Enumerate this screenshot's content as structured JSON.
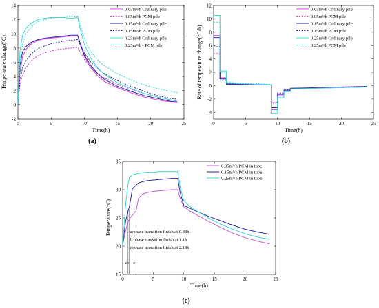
{
  "chart_data": [
    {
      "type": "line",
      "panel_label": "(a)",
      "xlabel": "Time(h)",
      "ylabel": "Temperature change(°C)",
      "xlim": [
        0,
        25
      ],
      "ylim": [
        -2,
        14
      ],
      "xticks": [
        0,
        5,
        10,
        15,
        20,
        25
      ],
      "yticks": [
        -2,
        0,
        2,
        4,
        6,
        8,
        10,
        12,
        14
      ],
      "grid": false,
      "legend_position": "top-right",
      "series": [
        {
          "name": "0.05m³/h Ordinary pile",
          "color": "#e040e0",
          "dash": false,
          "x": [
            0,
            0.3,
            0.7,
            1.2,
            2,
            3,
            4,
            5,
            6,
            7,
            8,
            9,
            9.3,
            10,
            11,
            12,
            13,
            15,
            17,
            19,
            21,
            23,
            24
          ],
          "y": [
            0,
            4.5,
            6.8,
            7.8,
            8.6,
            9.1,
            9.3,
            9.4,
            9.5,
            9.6,
            9.7,
            9.7,
            8.8,
            6.8,
            5.2,
            4.1,
            3.3,
            2.4,
            1.7,
            1.1,
            0.7,
            0.4,
            0.3
          ]
        },
        {
          "name": "0.05m³/h PCM pile",
          "color": "#e040e0",
          "dash": true,
          "x": [
            0,
            0.3,
            0.7,
            1.2,
            2,
            3,
            4,
            5,
            6,
            7,
            8,
            9,
            9.3,
            10,
            11,
            12,
            13,
            15,
            17,
            19,
            21,
            23,
            24
          ],
          "y": [
            0,
            2.8,
            4.2,
            5.2,
            6.2,
            6.9,
            7.3,
            7.6,
            7.8,
            7.9,
            8.0,
            8.1,
            7.6,
            6.4,
            5.2,
            4.4,
            3.8,
            2.9,
            2.2,
            1.6,
            1.1,
            0.7,
            0.6
          ]
        },
        {
          "name": "0.15m³/h Ordinary pile",
          "color": "#2a2aa8",
          "dash": false,
          "x": [
            0,
            0.3,
            0.7,
            1.2,
            2,
            3,
            4,
            5,
            6,
            7,
            8,
            9,
            9.3,
            10,
            11,
            12,
            13,
            15,
            17,
            19,
            21,
            23,
            24
          ],
          "y": [
            0,
            5.5,
            7.5,
            8.2,
            8.8,
            9.2,
            9.4,
            9.5,
            9.6,
            9.7,
            9.8,
            9.8,
            8.9,
            7.0,
            5.5,
            4.4,
            3.6,
            2.6,
            1.9,
            1.3,
            0.9,
            0.5,
            0.4
          ]
        },
        {
          "name": "0.15m³/h PCM pile",
          "color": "#2a2aa8",
          "dash": true,
          "x": [
            0,
            0.3,
            0.7,
            1.2,
            2,
            3,
            4,
            5,
            6,
            7,
            8,
            9,
            9.3,
            10,
            11,
            12,
            13,
            15,
            17,
            19,
            21,
            23,
            24
          ],
          "y": [
            0,
            3.5,
            5.2,
            6.2,
            7.2,
            7.9,
            8.3,
            8.6,
            8.8,
            9.0,
            9.1,
            9.2,
            8.6,
            7.3,
            6.0,
            5.1,
            4.4,
            3.4,
            2.6,
            1.9,
            1.3,
            0.9,
            0.8
          ]
        },
        {
          "name": "0.25m³/h Ordinary pile",
          "color": "#3cd8d8",
          "dash": false,
          "x": [
            0,
            0.3,
            0.7,
            1.2,
            2,
            3,
            4,
            5,
            6,
            7,
            8,
            9,
            9.3,
            10,
            11,
            12,
            13,
            15,
            17,
            19,
            21,
            23,
            24
          ],
          "y": [
            0,
            7.5,
            9.8,
            10.8,
            11.5,
            12.0,
            12.2,
            12.3,
            12.3,
            12.3,
            12.2,
            12.3,
            11.0,
            8.5,
            6.5,
            5.2,
            4.3,
            3.1,
            2.3,
            1.6,
            1.1,
            0.7,
            0.5
          ]
        },
        {
          "name": "0.25m³/h - PCM pile",
          "color": "#3cd8d8",
          "dash": true,
          "x": [
            0,
            0.3,
            0.7,
            1.2,
            2,
            3,
            4,
            5,
            6,
            7,
            8,
            9,
            9.3,
            10,
            11,
            12,
            13,
            15,
            17,
            19,
            21,
            23,
            24
          ],
          "y": [
            0,
            6.0,
            8.5,
            10.0,
            11.0,
            11.7,
            12.0,
            12.2,
            12.3,
            12.4,
            12.5,
            12.5,
            11.5,
            9.3,
            7.5,
            6.3,
            5.5,
            4.4,
            3.5,
            2.8,
            2.3,
            1.9,
            1.7
          ]
        }
      ]
    },
    {
      "type": "line",
      "panel_label": "(b)",
      "xlabel": "Time(h)",
      "ylabel": "Rate of temperature change(°C/h)",
      "xlim": [
        0,
        25
      ],
      "ylim": [
        -5,
        12
      ],
      "xticks": [
        0,
        5,
        10,
        15,
        20,
        25
      ],
      "yticks": [
        -4,
        -2,
        0,
        2,
        4,
        6,
        8,
        10,
        12
      ],
      "grid": false,
      "legend_position": "top-right",
      "series": [
        {
          "name": "0.05m³/h Ordinary pile",
          "color": "#e040e0",
          "dash": false,
          "x": [
            0,
            1,
            1,
            2,
            2,
            9,
            9,
            10,
            10,
            11,
            11,
            12,
            12,
            24
          ],
          "y": [
            7.5,
            7.5,
            1.2,
            1.2,
            0.2,
            0.1,
            -3.6,
            -3.6,
            -1.5,
            -1.5,
            -0.8,
            -0.8,
            -0.4,
            -0.2
          ]
        },
        {
          "name": "0.05m³/h PCM pile",
          "color": "#e040e0",
          "dash": true,
          "x": [
            0,
            1,
            1,
            2,
            2,
            9,
            9,
            10,
            10,
            11,
            11,
            12,
            12,
            24
          ],
          "y": [
            4.8,
            4.8,
            1.0,
            1.0,
            0.3,
            0.1,
            -2.6,
            -2.6,
            -1.2,
            -1.2,
            -0.7,
            -0.7,
            -0.4,
            -0.1
          ]
        },
        {
          "name": "0.15m³/h Ordinary pile",
          "color": "#2a2aa8",
          "dash": false,
          "x": [
            0,
            1,
            1,
            2,
            2,
            9,
            9,
            10,
            10,
            11,
            11,
            12,
            12,
            24
          ],
          "y": [
            7.2,
            7.2,
            1.0,
            1.0,
            0.2,
            0.1,
            -3.3,
            -3.3,
            -1.3,
            -1.3,
            -0.7,
            -0.7,
            -0.4,
            -0.2
          ]
        },
        {
          "name": "0.15m³/h PCM pile",
          "color": "#2a2aa8",
          "dash": true,
          "x": [
            0,
            1,
            1,
            2,
            2,
            9,
            9,
            10,
            10,
            11,
            11,
            12,
            12,
            24
          ],
          "y": [
            5.8,
            5.8,
            0.8,
            0.8,
            0.3,
            0.1,
            -2.8,
            -2.8,
            -1.1,
            -1.1,
            -0.6,
            -0.6,
            -0.4,
            -0.1
          ]
        },
        {
          "name": "0.25m³/h Ordinary pile",
          "color": "#3cd8d8",
          "dash": false,
          "x": [
            0,
            1,
            1,
            2,
            2,
            9,
            9,
            10,
            10,
            11,
            11,
            12,
            12,
            24
          ],
          "y": [
            10.5,
            10.5,
            2.2,
            2.2,
            0.4,
            0.1,
            -4.2,
            -4.2,
            -1.8,
            -1.8,
            -0.9,
            -0.9,
            -0.5,
            -0.2
          ]
        },
        {
          "name": "0.25m³/h PCM pile",
          "color": "#3cd8d8",
          "dash": true,
          "x": [
            0,
            1,
            1,
            2,
            2,
            9,
            9,
            10,
            10,
            11,
            11,
            12,
            12,
            24
          ],
          "y": [
            9.5,
            9.5,
            2.0,
            2.0,
            0.5,
            0.2,
            -3.8,
            -3.8,
            -1.6,
            -1.6,
            -0.8,
            -0.8,
            -0.5,
            -0.2
          ]
        }
      ]
    },
    {
      "type": "line",
      "panel_label": "(c)",
      "xlabel": "Time(h)",
      "ylabel": "Temperature(°C)",
      "xlim": [
        0,
        25
      ],
      "ylim": [
        15,
        35
      ],
      "xticks": [
        0,
        5,
        10,
        15,
        20,
        25
      ],
      "yticks": [
        15,
        20,
        25,
        30,
        35
      ],
      "grid": false,
      "legend_position": "top-right",
      "annotations": {
        "lines": [
          "a:phase transition finish at 0.88h",
          "b:phase transition finish at 1.1h",
          "c:phase transition finish at 2.18h"
        ],
        "markers": [
          {
            "label": "a",
            "x": 0.88
          },
          {
            "label": "b",
            "x": 1.1
          },
          {
            "label": "c",
            "x": 2.18
          }
        ]
      },
      "series": [
        {
          "name": "0.05m³/h  PCM in tube",
          "color": "#c060d8",
          "dash": false,
          "x": [
            0,
            0.5,
            0.88,
            1.2,
            1.6,
            2.18,
            2.6,
            3.2,
            4,
            5,
            6,
            7,
            8,
            9,
            9.4,
            10,
            11,
            12,
            14,
            16,
            18,
            20,
            22,
            24
          ],
          "y": [
            20.2,
            22.8,
            24.3,
            25.0,
            25.5,
            26.2,
            28.5,
            29.2,
            29.5,
            29.7,
            29.8,
            29.9,
            30.0,
            30.0,
            28.5,
            27.0,
            26.2,
            25.6,
            24.4,
            23.3,
            22.3,
            21.5,
            20.9,
            20.4
          ]
        },
        {
          "name": "0.15m³/h  PCM in tube",
          "color": "#2a2aa8",
          "dash": false,
          "x": [
            0,
            0.5,
            0.88,
            1.1,
            1.6,
            2.18,
            2.6,
            3.2,
            4,
            5,
            6,
            7,
            8,
            9,
            9.4,
            10,
            11,
            12,
            14,
            16,
            18,
            20,
            22,
            24
          ],
          "y": [
            20.2,
            24.5,
            26.2,
            27.0,
            30.2,
            30.8,
            31.2,
            31.4,
            31.6,
            31.7,
            31.8,
            31.9,
            32.0,
            32.0,
            29.5,
            27.2,
            26.7,
            26.2,
            25.3,
            24.5,
            23.7,
            23.0,
            22.5,
            22.1
          ]
        },
        {
          "name": "0.25m³/h  PCM in tube",
          "color": "#3cd8d8",
          "dash": false,
          "x": [
            0,
            0.5,
            0.88,
            1.1,
            1.6,
            2.18,
            2.6,
            3.2,
            4,
            5,
            6,
            7,
            8,
            9,
            9.4,
            10,
            11,
            12,
            14,
            16,
            18,
            20,
            22,
            24
          ],
          "y": [
            20.2,
            27.5,
            31.0,
            32.2,
            32.6,
            32.8,
            32.9,
            33.0,
            33.1,
            33.1,
            33.2,
            33.2,
            33.2,
            33.2,
            30.5,
            28.0,
            27.0,
            26.3,
            25.0,
            23.9,
            23.0,
            22.2,
            21.6,
            21.2
          ]
        }
      ]
    }
  ]
}
